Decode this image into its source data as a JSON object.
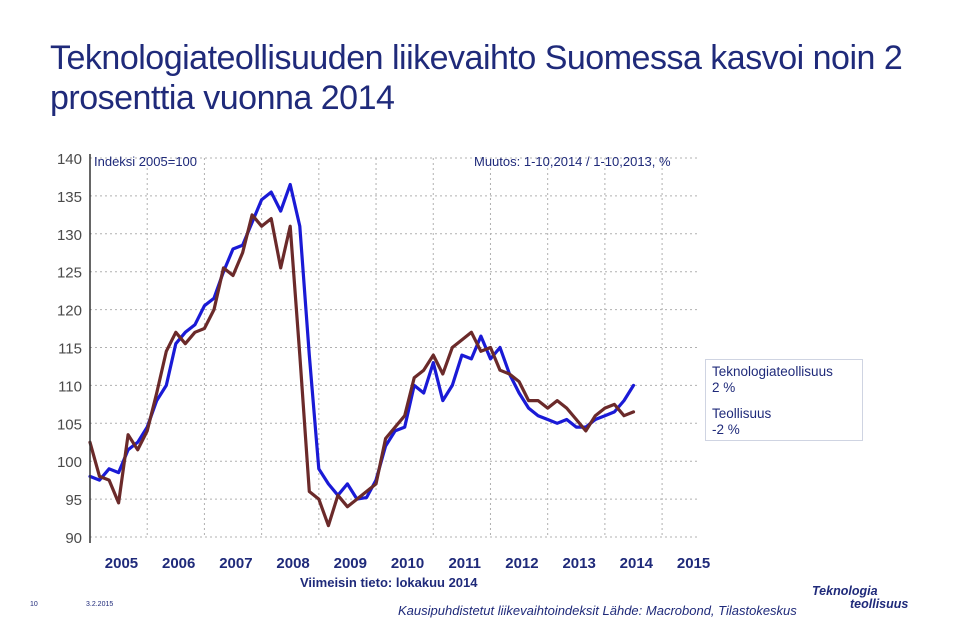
{
  "title": "Teknologiateollisuuden liikevaihto Suomessa kasvoi noin 2 prosenttia vuonna 2014",
  "index_label": "Indeksi 2005=100",
  "change_label": "Muutos: 1-10,2014 / 1-10,2013, %",
  "legend": {
    "item1_name": "Teknologiateollisuus",
    "item1_value": "2 %",
    "item2_name": "Teollisuus",
    "item2_value": "-2 %"
  },
  "latest_data": "Viimeisin tieto: lokakuu 2014",
  "source": "Kausipuhdistetut liikevaihtoindeksit Lähde: Macrobond, Tilastokeskus",
  "footer_page": "10",
  "footer_date": "3.2.2015",
  "logo": {
    "line1": "Teknologia",
    "line2": "teollisuus"
  },
  "colors": {
    "series1": "#1a1ad6",
    "series2": "#6b2a2a",
    "text": "#1f2a7a",
    "grid": "#b0b0b0"
  },
  "chart_data": {
    "type": "line",
    "title": "",
    "xlabel": "",
    "ylabel": "Indeksi 2005=100",
    "ylim": [
      90,
      140
    ],
    "yticks": [
      90,
      95,
      100,
      105,
      110,
      115,
      120,
      125,
      130,
      135,
      140
    ],
    "xlim": [
      2005,
      2015.75
    ],
    "xticks": [
      2005,
      2006,
      2007,
      2008,
      2009,
      2010,
      2011,
      2012,
      2013,
      2014,
      2015
    ],
    "grid": true,
    "legend_placement": "right",
    "series": [
      {
        "name": "Teknologiateollisuus",
        "start": 2005,
        "step_months": 2,
        "color": "#1a1ad6",
        "values": [
          98,
          97.5,
          99,
          98.5,
          101.5,
          102.5,
          104.5,
          108,
          110,
          115.5,
          117,
          118,
          120.5,
          121.5,
          125,
          128,
          128.5,
          131.5,
          134.5,
          135.5,
          133,
          136.5,
          131,
          114,
          99,
          97,
          95.5,
          97,
          95,
          95.2,
          97.5,
          102,
          104,
          104.5,
          110,
          109,
          113,
          108,
          110,
          114,
          113.5,
          116.5,
          113.5,
          115,
          111.5,
          109,
          107,
          106,
          105.5,
          105,
          105.5,
          104.5,
          104.5,
          105.5,
          106,
          106.5,
          108,
          110
        ]
      },
      {
        "name": "Teollisuus",
        "start": 2005,
        "step_months": 2,
        "color": "#6b2a2a",
        "values": [
          102.5,
          98,
          97.5,
          94.5,
          103.5,
          101.5,
          104,
          109,
          114.5,
          117,
          115.5,
          117,
          117.5,
          120,
          125.5,
          124.5,
          127.5,
          132.5,
          131,
          132,
          125.5,
          131,
          114,
          96,
          95,
          91.5,
          95.5,
          94,
          95,
          96,
          97,
          103,
          104.5,
          106,
          111,
          112,
          114,
          111.5,
          115,
          116,
          117,
          114.5,
          115,
          112,
          111.5,
          110.5,
          108,
          108,
          107,
          108,
          107,
          105.5,
          104,
          106,
          107,
          107.5,
          106,
          106.5
        ]
      }
    ]
  }
}
